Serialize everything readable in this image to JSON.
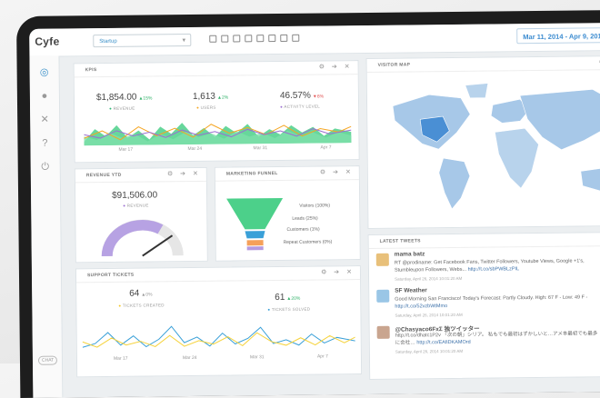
{
  "app": {
    "logo": "Cyfe",
    "dashboard_select": "Startup",
    "date_range": "Mar 11, 2014 - Apr 9, 2014"
  },
  "sidebar": {
    "icons": [
      "dashboard-icon",
      "user-icon",
      "tools-icon",
      "help-icon",
      "power-icon"
    ],
    "chat_label": "CHAT"
  },
  "kpis": {
    "title": "KPIS",
    "items": [
      {
        "value": "$1,854.00",
        "delta": "15%",
        "dir": "up",
        "label": "REVENUE",
        "color": "#2bb673"
      },
      {
        "value": "1,613",
        "delta": "2%",
        "dir": "up",
        "label": "USERS",
        "color": "#f5a623"
      },
      {
        "value": "46.57%",
        "delta": "6%",
        "dir": "down",
        "label": "ACTIVITY LEVEL",
        "color": "#9b6fd1"
      }
    ],
    "ticks": [
      "Mar 17",
      "Mar 24",
      "Mar 31",
      "Apr 7"
    ]
  },
  "visitor_map": {
    "title": "VISITOR MAP"
  },
  "revenue_ytd": {
    "title": "REVENUE YTD",
    "value": "$91,506.00",
    "label": "REVENUE"
  },
  "funnel": {
    "title": "MARKETING FUNNEL",
    "levels": [
      "Visitors (100%)",
      "Leads (25%)",
      "Customers (1%)",
      "Repeat Customers (0%)"
    ]
  },
  "support": {
    "title": "SUPPORT TICKETS",
    "created": {
      "value": "64",
      "delta": "0%",
      "label": "TICKETS CREATED"
    },
    "solved": {
      "value": "61",
      "delta": "20%",
      "label": "TICKETS SOLVED"
    },
    "ticks": [
      "Mar 17",
      "Mar 24",
      "Mar 31",
      "Apr 7"
    ]
  },
  "tweets": {
    "title": "LATEST TWEETS",
    "items": [
      {
        "name": "mama batz",
        "text": "RT @prodiname: Get Facebook Fans, Twitter Followers, Youtube Views, Google +1's, Stumbleupon Followers, Webs... ",
        "link": "http://t.co/sbPWBLzPIL",
        "date": "Saturday, April 26, 2014 10:01:20 AM"
      },
      {
        "name": "SF Weather",
        "text": "Good Morning San Francisco! Today's Forecast: Partly Cloudy. High: 67 F - Low: 49 F - ",
        "link": "http://t.co/52vzbWtMmo",
        "date": "Saturday, April 26, 2014 10:01:20 AM"
      },
      {
        "name": "@Chasyaco6FxΣ 独ツイッター",
        "text": "http://t.co/dhatc1P2v 「次の朝」シリア。 私もでも最初はずかしいと…アメ本最初でも最多に会社… ",
        "link": "http://t.co/EAfiDKAMOrd",
        "date": "Saturday, April 26, 2014 10:01:20 AM"
      }
    ]
  }
}
